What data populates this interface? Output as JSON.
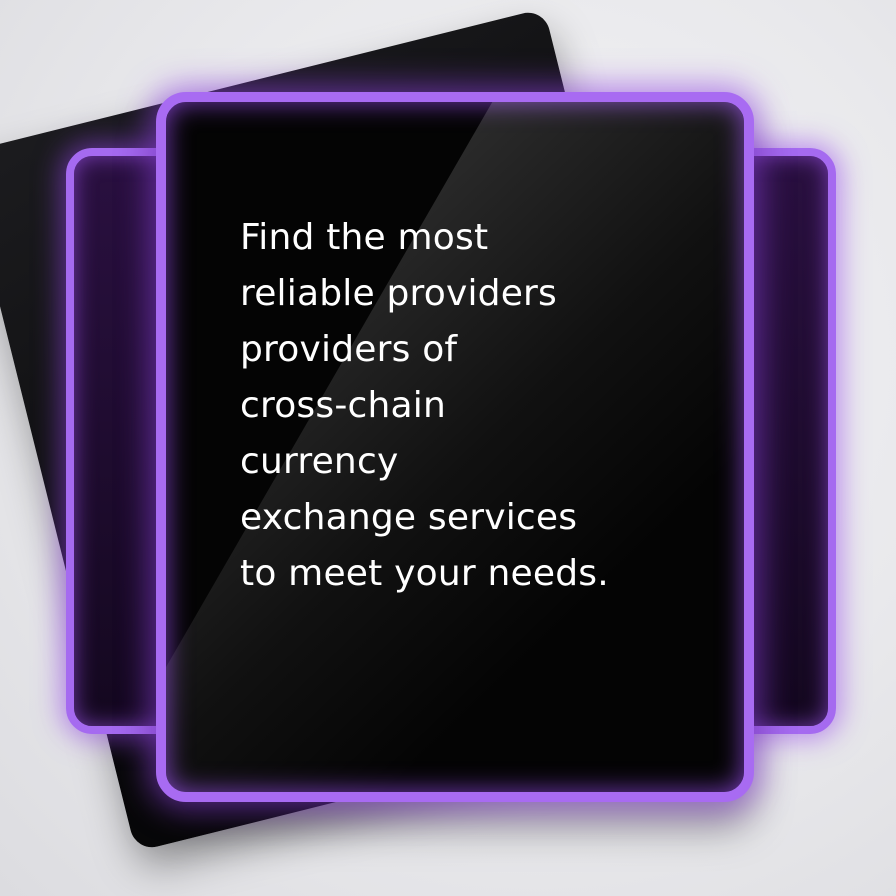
{
  "card": {
    "lines": [
      "Find the most",
      "reliable providers",
      "providers of",
      "cross-chain",
      "currency",
      "exchange services",
      "to meet your needs."
    ]
  },
  "colors": {
    "frame_purple": "#a86bf2",
    "glow_purple": "#9646eb",
    "card_black": "#040404",
    "background": "#e9e9ec"
  }
}
